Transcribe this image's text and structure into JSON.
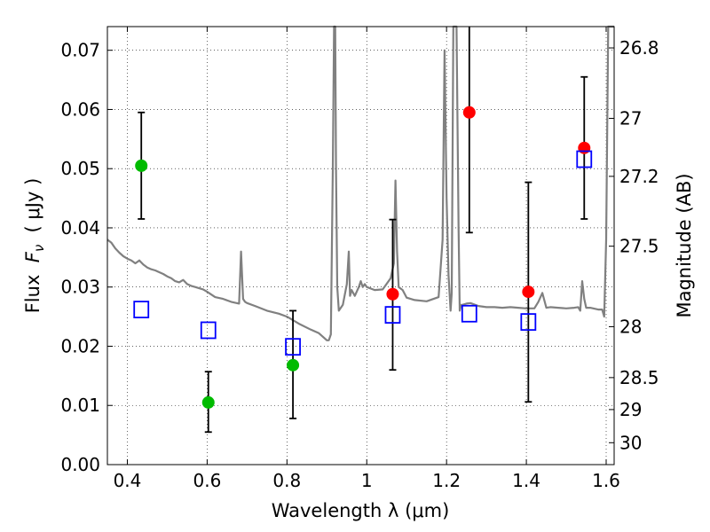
{
  "chart_data": {
    "type": "scatter",
    "title": "",
    "xlabel": "Wavelength  λ (μm)",
    "ylabel": "Flux  F_ν  ( μJy )",
    "ylabel_parts": {
      "prefix": "Flux  ",
      "symbol": "F",
      "subscript": "ν",
      "suffix": "  ( μJy )"
    },
    "y2label": "Magnitude (AB)",
    "xlim": [
      0.35,
      1.62
    ],
    "ylim": [
      0.0,
      0.074
    ],
    "grid": true,
    "x_ticks": [
      0.4,
      0.6,
      0.8,
      1.0,
      1.2,
      1.4,
      1.6
    ],
    "x_tick_labels": [
      "0.4",
      "0.6",
      "0.8",
      "1",
      "1.2",
      "1.4",
      "1.6"
    ],
    "y_ticks": [
      0.0,
      0.01,
      0.02,
      0.03,
      0.04,
      0.05,
      0.06,
      0.07
    ],
    "y_tick_labels": [
      "0.00",
      "0.01",
      "0.02",
      "0.03",
      "0.04",
      "0.05",
      "0.06",
      "0.07"
    ],
    "y2_ticks": [
      {
        "label": "26.8",
        "flux": 0.0704
      },
      {
        "label": "27",
        "flux": 0.0585
      },
      {
        "label": "27.2",
        "flux": 0.0487
      },
      {
        "label": "27.5",
        "flux": 0.0369
      },
      {
        "label": "28",
        "flux": 0.0233
      },
      {
        "label": "28.5",
        "flux": 0.0147
      },
      {
        "label": "29",
        "flux": 0.0093
      },
      {
        "label": "30",
        "flux": 0.0037
      }
    ],
    "series": [
      {
        "name": "model spectrum",
        "kind": "line",
        "color": "#808080",
        "x": [
          0.35,
          0.36,
          0.37,
          0.38,
          0.39,
          0.4,
          0.41,
          0.42,
          0.43,
          0.44,
          0.45,
          0.46,
          0.47,
          0.48,
          0.49,
          0.5,
          0.51,
          0.52,
          0.53,
          0.54,
          0.55,
          0.56,
          0.57,
          0.58,
          0.59,
          0.6,
          0.62,
          0.64,
          0.66,
          0.68,
          0.685,
          0.69,
          0.695,
          0.7,
          0.72,
          0.75,
          0.78,
          0.8,
          0.83,
          0.86,
          0.88,
          0.9,
          0.905,
          0.91,
          0.915,
          0.918,
          0.921,
          0.923,
          0.926,
          0.93,
          0.94,
          0.95,
          0.955,
          0.958,
          0.962,
          0.97,
          0.98,
          0.985,
          0.99,
          0.995,
          1.0,
          1.02,
          1.04,
          1.06,
          1.068,
          1.072,
          1.076,
          1.08,
          1.09,
          1.1,
          1.12,
          1.15,
          1.18,
          1.19,
          1.195,
          1.2,
          1.205,
          1.21,
          1.213,
          1.217,
          1.22,
          1.225,
          1.23,
          1.233,
          1.236,
          1.24,
          1.25,
          1.26,
          1.28,
          1.3,
          1.32,
          1.34,
          1.36,
          1.38,
          1.4,
          1.42,
          1.43,
          1.44,
          1.45,
          1.46,
          1.48,
          1.5,
          1.52,
          1.53,
          1.535,
          1.54,
          1.545,
          1.55,
          1.56,
          1.58,
          1.59,
          1.595,
          1.6,
          1.605,
          1.61,
          1.62
        ],
        "y": [
          0.038,
          0.0375,
          0.0365,
          0.0358,
          0.0352,
          0.0348,
          0.0345,
          0.034,
          0.0345,
          0.0338,
          0.0333,
          0.033,
          0.0328,
          0.0325,
          0.0322,
          0.0318,
          0.0315,
          0.031,
          0.0308,
          0.0312,
          0.0305,
          0.0302,
          0.03,
          0.0298,
          0.0296,
          0.0292,
          0.0283,
          0.028,
          0.0275,
          0.0272,
          0.036,
          0.028,
          0.0275,
          0.0273,
          0.0268,
          0.026,
          0.0255,
          0.025,
          0.0238,
          0.0228,
          0.0222,
          0.021,
          0.021,
          0.022,
          0.05,
          0.074,
          0.074,
          0.05,
          0.03,
          0.026,
          0.027,
          0.0305,
          0.036,
          0.0285,
          0.0295,
          0.0285,
          0.03,
          0.031,
          0.03,
          0.0305,
          0.03,
          0.0295,
          0.0296,
          0.0315,
          0.034,
          0.048,
          0.036,
          0.03,
          0.0295,
          0.0282,
          0.0278,
          0.0276,
          0.0283,
          0.038,
          0.07,
          0.045,
          0.032,
          0.026,
          0.029,
          0.074,
          0.074,
          0.074,
          0.04,
          0.026,
          0.027,
          0.027,
          0.0272,
          0.0273,
          0.0268,
          0.0266,
          0.0266,
          0.0265,
          0.0266,
          0.0265,
          0.0264,
          0.0264,
          0.0275,
          0.029,
          0.0265,
          0.0266,
          0.0265,
          0.0264,
          0.0265,
          0.0266,
          0.026,
          0.031,
          0.028,
          0.0265,
          0.0265,
          0.0262,
          0.0262,
          0.025,
          0.038,
          0.074,
          0.074,
          0.074
        ]
      },
      {
        "name": "observed (green)",
        "kind": "points",
        "color": "#00bb00",
        "x": [
          0.435,
          0.603,
          0.815
        ],
        "y": [
          0.0505,
          0.0105,
          0.0168
        ],
        "yerr_low": [
          0.0415,
          0.0055,
          0.0078
        ],
        "yerr_high": [
          0.0595,
          0.0157,
          0.026
        ]
      },
      {
        "name": "observed (red)",
        "kind": "points",
        "color": "#ff0000",
        "x": [
          1.065,
          1.257,
          1.405,
          1.545
        ],
        "y": [
          0.0288,
          0.0595,
          0.0292,
          0.0535
        ],
        "yerr_low": [
          0.016,
          0.0392,
          0.0106,
          0.0415
        ],
        "yerr_high": [
          0.0414,
          0.074,
          0.0477,
          0.0655
        ]
      },
      {
        "name": "model photometry",
        "kind": "squares",
        "color": "#0000ff",
        "x": [
          0.435,
          0.603,
          0.815,
          1.065,
          1.257,
          1.405,
          1.545
        ],
        "y": [
          0.0262,
          0.0227,
          0.0199,
          0.0253,
          0.0255,
          0.0241,
          0.0516
        ]
      }
    ]
  }
}
